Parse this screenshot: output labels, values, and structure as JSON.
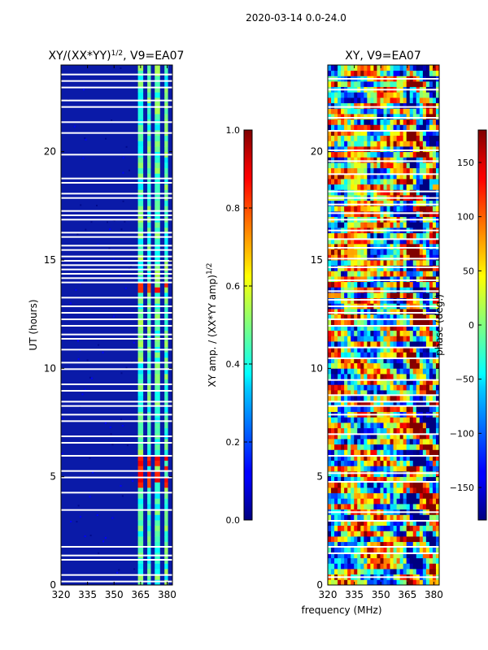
{
  "figure": {
    "suptitle": "2020-03-14 0.0-24.0",
    "xlabel_shared": "frequency (MHz)"
  },
  "chart_data": [
    {
      "type": "heatmap",
      "title_prefix": "XY/(XX*YY)",
      "title_exponent": "1/2",
      "title_suffix": ", V9=EA07",
      "ylabel": "UT (hours)",
      "xlim": [
        320,
        383
      ],
      "ylim": [
        0,
        24
      ],
      "xticks": [
        320,
        335,
        350,
        365,
        380
      ],
      "yticks": [
        0,
        5,
        10,
        15,
        20
      ],
      "channel_bands_mhz": [
        [
          363.5,
          366.5
        ],
        [
          368.8,
          370.8
        ],
        [
          373,
          376
        ],
        [
          378.5,
          380.5
        ]
      ],
      "bright_features": [
        {
          "time_range_h": [
            13.5,
            14.0
          ],
          "level": 0.78
        },
        {
          "time_range_h": [
            4.5,
            6.0
          ],
          "level": 0.8
        }
      ],
      "gap_times_h": [
        0.2,
        0.5,
        1.2,
        1.4,
        1.8,
        3.5,
        4.3,
        5.0,
        5.3,
        6.0,
        6.6,
        6.9,
        7.6,
        7.9,
        8.3,
        8.5,
        9.0,
        9.3,
        10.0,
        10.3,
        10.9,
        11.4,
        11.6,
        12.0,
        12.3,
        12.6,
        12.9,
        13.3,
        14.0,
        14.2,
        14.4,
        14.6,
        14.8,
        15.0,
        15.2,
        15.5,
        15.7,
        16.1,
        16.3,
        16.9,
        17.1,
        17.3,
        17.9,
        18.1,
        18.6,
        18.8,
        19.9,
        20.9,
        21.4,
        22.1,
        22.4,
        23.0,
        23.3,
        23.6
      ],
      "colorbar": {
        "label_prefix": "XY amp. / (XX*YY amp)",
        "label_exponent": "1/2",
        "range": [
          0.0,
          1.0
        ],
        "ticks": [
          "0.0",
          "0.2",
          "0.4",
          "0.6",
          "0.8",
          "1.0"
        ],
        "colormap": "jet"
      }
    },
    {
      "type": "heatmap",
      "title": "XY, V9=EA07",
      "xlim": [
        320,
        383
      ],
      "ylim": [
        0,
        24
      ],
      "xticks": [
        320,
        335,
        350,
        365,
        380
      ],
      "yticks": [
        0,
        5,
        10,
        15,
        20
      ],
      "gap_times_h": [
        0.4,
        1.5,
        1.8,
        3.0,
        3.4,
        4.8,
        5.2,
        6.0,
        7.0,
        7.9,
        8.3,
        8.5,
        8.8,
        9.5,
        10.5,
        11.0,
        12.0,
        12.3,
        12.6,
        12.9,
        13.2,
        13.6,
        14.1,
        14.7,
        15.1,
        15.6,
        16.0,
        16.4,
        16.9,
        17.2,
        17.6,
        17.9,
        18.2,
        19.0,
        19.6,
        20.1,
        21.0,
        21.6,
        22.1,
        22.9,
        23.4
      ],
      "colorbar": {
        "label": "phase (deg.)",
        "range": [
          -180,
          180
        ],
        "ticks": [
          "−150",
          "−100",
          "−50",
          "0",
          "50",
          "100",
          "150"
        ],
        "tick_values": [
          -150,
          -100,
          -50,
          0,
          50,
          100,
          150
        ],
        "colormap": "jet"
      }
    }
  ]
}
